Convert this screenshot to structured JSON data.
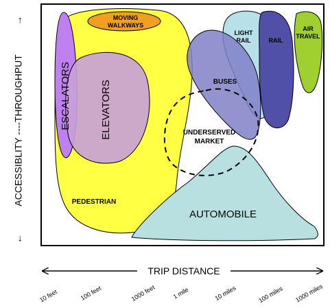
{
  "axis": {
    "y_label": "ACCESSIBLITY ----THROUGHPUT",
    "x_label": "TRIP DISTANCE",
    "x_ticks": [
      "10 feet",
      "100 feet",
      "1000 feet",
      "1 mile",
      "10 miles",
      "100 miles",
      "1000 miles"
    ]
  },
  "regions": {
    "pedestrian": "PEDESTRIAN",
    "moving_walkways_line1": "MOVING",
    "moving_walkways_line2": "WALKWAYS",
    "escalators": "ESCALATORS",
    "elevators": "ELEVATORS",
    "buses": "BUSES",
    "light_rail_line1": "LIGHT",
    "light_rail_line2": "RAIL",
    "rail": "RAIL",
    "air_travel_line1": "AIR",
    "air_travel_line2": "TRAVEL",
    "underserved_line1": "UNDERSERVED",
    "underserved_line2": "MARKET",
    "automobile": "AUTOMOBILE"
  },
  "colors": {
    "pedestrian": "#ffff44",
    "moving_walkways": "#f0a020",
    "escalators": "#c080f0",
    "elevators": "#c8a0d8",
    "buses": "#8080c8",
    "light_rail": "#b8e0e8",
    "rail": "#5050a8",
    "air_travel": "#a0d030",
    "automobile": "#b8e0e0"
  }
}
